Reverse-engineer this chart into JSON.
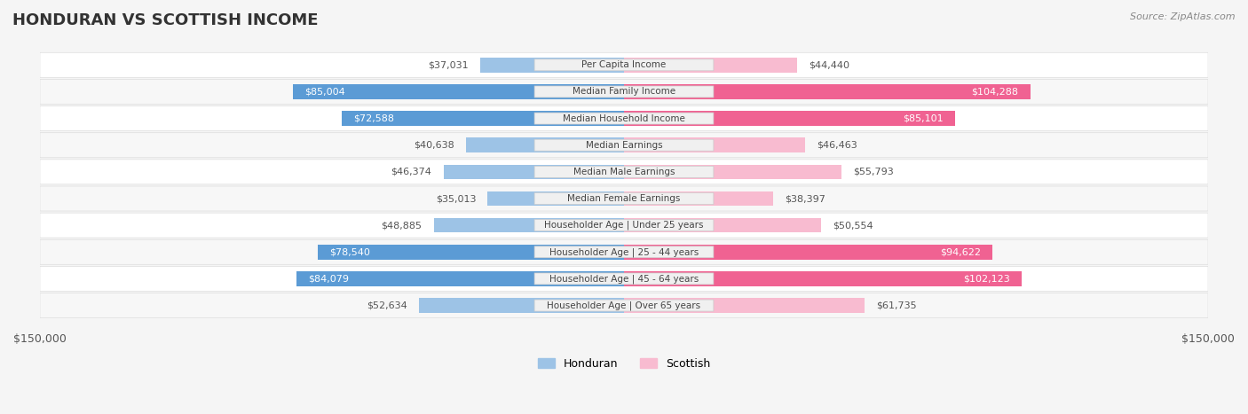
{
  "title": "HONDURAN VS SCOTTISH INCOME",
  "source": "Source: ZipAtlas.com",
  "categories": [
    "Per Capita Income",
    "Median Family Income",
    "Median Household Income",
    "Median Earnings",
    "Median Male Earnings",
    "Median Female Earnings",
    "Householder Age | Under 25 years",
    "Householder Age | 25 - 44 years",
    "Householder Age | 45 - 64 years",
    "Householder Age | Over 65 years"
  ],
  "honduran_values": [
    37031,
    85004,
    72588,
    40638,
    46374,
    35013,
    48885,
    78540,
    84079,
    52634
  ],
  "scottish_values": [
    44440,
    104288,
    85101,
    46463,
    55793,
    38397,
    50554,
    94622,
    102123,
    61735
  ],
  "honduran_labels": [
    "$37,031",
    "$85,004",
    "$72,588",
    "$40,638",
    "$46,374",
    "$35,013",
    "$48,885",
    "$78,540",
    "$84,079",
    "$52,634"
  ],
  "scottish_labels": [
    "$44,440",
    "$104,288",
    "$85,101",
    "$46,463",
    "$55,793",
    "$38,397",
    "$50,554",
    "$94,622",
    "$102,123",
    "$61,735"
  ],
  "honduran_large": [
    false,
    true,
    true,
    false,
    false,
    false,
    false,
    true,
    true,
    false
  ],
  "scottish_large": [
    false,
    true,
    true,
    false,
    false,
    false,
    false,
    true,
    true,
    false
  ],
  "max_value": 150000,
  "honduran_color_dark": "#5b9bd5",
  "honduran_color_light": "#9dc3e6",
  "scottish_color_dark": "#f06292",
  "scottish_color_light": "#f8bbd0",
  "bg_color": "#f5f5f5",
  "bar_height": 0.55,
  "label_color_dark": "#ffffff",
  "label_color_light": "#555555"
}
